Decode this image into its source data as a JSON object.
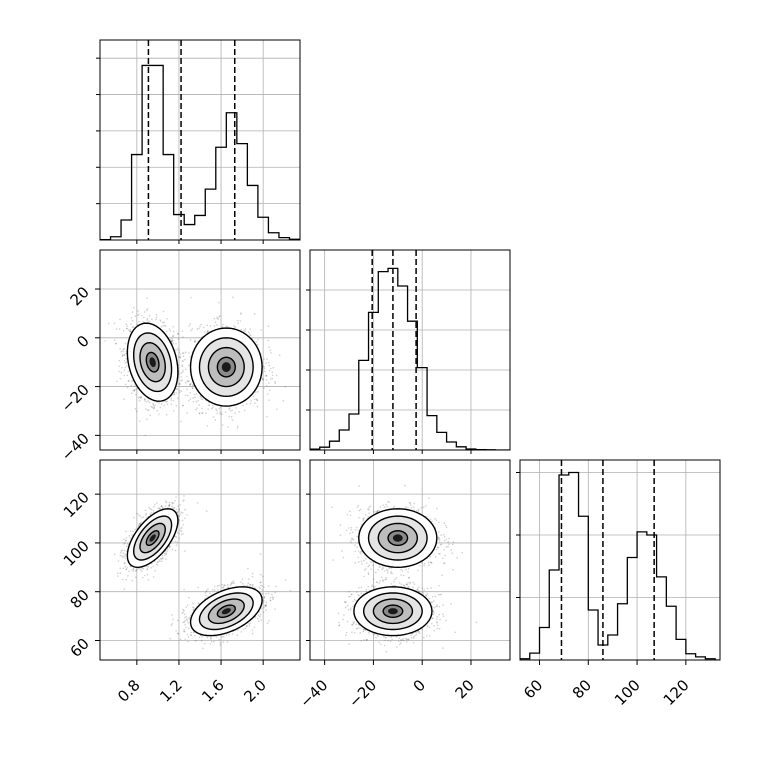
{
  "chart_data": {
    "type": "corner",
    "grid": true,
    "parameters": [
      {
        "key": "p1",
        "range": [
          0.45,
          2.35
        ],
        "ticks": [
          0.8,
          1.2,
          1.6,
          2.0
        ],
        "tick_labels": [
          "0.8",
          "1.2",
          "1.6",
          "2.0"
        ]
      },
      {
        "key": "p2",
        "range": [
          -46,
          36
        ],
        "ticks": [
          -40,
          -20,
          0,
          20
        ],
        "tick_labels": [
          "−40",
          "−20",
          "0",
          "20"
        ]
      },
      {
        "key": "p3",
        "range": [
          52,
          134
        ],
        "ticks": [
          60,
          80,
          100,
          120
        ],
        "tick_labels": [
          "60",
          "80",
          "100",
          "120"
        ]
      }
    ],
    "histograms": [
      {
        "param": "p1",
        "bin_edges": [
          0.45,
          0.55,
          0.65,
          0.75,
          0.85,
          0.95,
          1.05,
          1.15,
          1.25,
          1.35,
          1.45,
          1.55,
          1.65,
          1.75,
          1.85,
          1.95,
          2.05,
          2.15,
          2.25,
          2.35
        ],
        "counts": [
          2,
          18,
          110,
          470,
          960,
          960,
          470,
          140,
          85,
          135,
          280,
          510,
          700,
          530,
          300,
          125,
          40,
          13,
          4
        ],
        "ylim": [
          0,
          1100
        ],
        "yticks": [
          200,
          400,
          600,
          800,
          1000
        ],
        "quantiles": [
          0.91,
          1.22,
          1.73
        ]
      },
      {
        "param": "p2",
        "bin_edges": [
          -46,
          -42,
          -38,
          -34,
          -30,
          -26,
          -22,
          -18,
          -14,
          -10,
          -6,
          -2,
          2,
          6,
          10,
          14,
          18,
          22,
          26,
          30,
          34,
          36
        ],
        "counts": [
          10,
          35,
          110,
          250,
          450,
          1120,
          1720,
          2230,
          2270,
          2050,
          1610,
          1030,
          430,
          220,
          100,
          40,
          12,
          5,
          3,
          0,
          0
        ],
        "ylim": [
          0,
          2500
        ],
        "yticks": [
          500,
          1000,
          1500,
          2000
        ],
        "quantiles": [
          -20.5,
          -12,
          -2.5
        ]
      },
      {
        "param": "p3",
        "bin_edges": [
          52,
          56,
          60,
          64,
          68,
          72,
          76,
          80,
          84,
          88,
          92,
          96,
          100,
          104,
          108,
          112,
          116,
          120,
          124,
          128,
          132,
          134
        ],
        "counts": [
          20,
          110,
          520,
          1440,
          2960,
          3000,
          2300,
          800,
          240,
          400,
          900,
          1640,
          2050,
          2000,
          1330,
          860,
          330,
          100,
          50,
          20,
          0
        ],
        "ylim": [
          0,
          3200
        ],
        "yticks": [
          1000,
          2000,
          3000
        ],
        "quantiles": [
          69,
          86,
          107
        ]
      }
    ],
    "scatter_modes": [
      {
        "weight": 0.5,
        "mean": {
          "p1": 0.95,
          "p2": -10,
          "p3": 102
        },
        "sd": {
          "p1": 0.12,
          "p2": 8,
          "p3": 6
        },
        "rho": {
          "p1p2": -0.25,
          "p1p3": 0.6,
          "p2p3": 0
        }
      },
      {
        "weight": 0.5,
        "mean": {
          "p1": 1.65,
          "p2": -12,
          "p3": 72
        },
        "sd": {
          "p1": 0.17,
          "p2": 8,
          "p3": 5
        },
        "rho": {
          "p1p2": 0,
          "p1p3": 0.45,
          "p2p3": 0
        }
      }
    ],
    "contour_levels_sigma": [
      0.5,
      1.0,
      1.5,
      2.0
    ]
  }
}
